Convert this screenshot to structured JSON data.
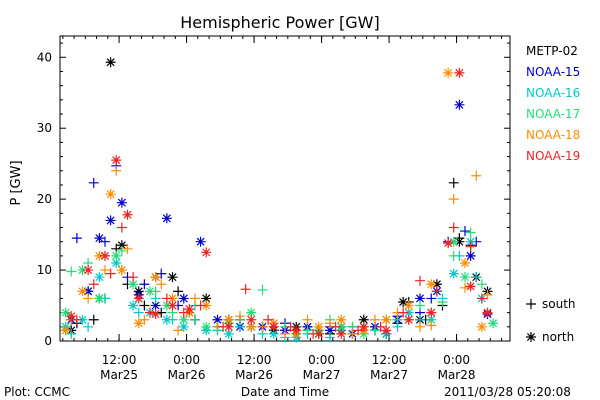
{
  "chart_data": {
    "type": "scatter",
    "title": "Hemispheric Power [GW]",
    "ylabel": "P [GW]",
    "xlabel": "Date and Time",
    "ylim": [
      0,
      43
    ],
    "yticks": [
      0,
      10,
      20,
      30,
      40
    ],
    "xlim_hours": [
      0,
      80
    ],
    "xticks": [
      {
        "t": 10.5,
        "time": "12:00",
        "date": "Mar25"
      },
      {
        "t": 22.5,
        "time": "0:00",
        "date": "Mar26"
      },
      {
        "t": 34.5,
        "time": "12:00",
        "date": "Mar26"
      },
      {
        "t": 46.5,
        "time": "0:00",
        "date": "Mar27"
      },
      {
        "t": 58.5,
        "time": "12:00",
        "date": "Mar27"
      },
      {
        "t": 70.5,
        "time": "0:00",
        "date": "Mar28"
      }
    ],
    "series": [
      {
        "name": "METP-02",
        "color": "#000000",
        "south": [
          [
            3,
            2.5
          ],
          [
            6,
            3
          ],
          [
            8,
            6
          ],
          [
            10,
            13
          ],
          [
            12,
            8
          ],
          [
            15,
            5
          ],
          [
            18,
            4
          ],
          [
            21,
            7
          ],
          [
            24,
            3
          ],
          [
            28,
            2
          ],
          [
            32,
            3
          ],
          [
            36,
            2
          ],
          [
            40,
            1.5
          ],
          [
            44,
            2
          ],
          [
            48,
            1
          ],
          [
            52,
            2
          ],
          [
            56,
            1.5
          ],
          [
            60,
            2.5
          ],
          [
            62,
            5.5
          ],
          [
            65,
            3
          ],
          [
            68,
            5
          ],
          [
            70,
            22.3
          ],
          [
            71,
            14.5
          ],
          [
            73,
            13.5
          ]
        ],
        "north": [
          [
            2,
            1.5
          ],
          [
            5,
            7
          ],
          [
            7,
            6
          ],
          [
            9,
            39.3
          ],
          [
            11,
            13.5
          ],
          [
            14,
            7
          ],
          [
            17,
            9
          ],
          [
            20,
            9
          ],
          [
            23,
            4
          ],
          [
            26,
            6
          ],
          [
            30,
            3
          ],
          [
            34,
            2
          ],
          [
            38,
            1.5
          ],
          [
            42,
            2
          ],
          [
            46,
            1
          ],
          [
            50,
            2
          ],
          [
            54,
            3
          ],
          [
            58,
            1
          ],
          [
            61,
            5.5
          ],
          [
            64,
            3
          ],
          [
            67,
            8
          ],
          [
            71,
            14
          ],
          [
            74,
            9
          ],
          [
            76,
            7
          ]
        ]
      },
      {
        "name": "NOAA-15",
        "color": "#0000cc",
        "south": [
          [
            3,
            14.5
          ],
          [
            6,
            22.3
          ],
          [
            8,
            14
          ],
          [
            10,
            24.7
          ],
          [
            12,
            9
          ],
          [
            15,
            8
          ],
          [
            18,
            9.5
          ],
          [
            21,
            5
          ],
          [
            24,
            3
          ],
          [
            28,
            2
          ],
          [
            32,
            3
          ],
          [
            36,
            2
          ],
          [
            40,
            2.5
          ],
          [
            44,
            1.5
          ],
          [
            48,
            2
          ],
          [
            52,
            1
          ],
          [
            56,
            2
          ],
          [
            60,
            3.5
          ],
          [
            64,
            4
          ],
          [
            66,
            6
          ],
          [
            69,
            14
          ],
          [
            72,
            15.5
          ],
          [
            74,
            14
          ]
        ],
        "north": [
          [
            2,
            3
          ],
          [
            5,
            7
          ],
          [
            7,
            14.5
          ],
          [
            9,
            17
          ],
          [
            11,
            19.5
          ],
          [
            14,
            6.5
          ],
          [
            17,
            5
          ],
          [
            19,
            17.3
          ],
          [
            22,
            6
          ],
          [
            25,
            14
          ],
          [
            28,
            3
          ],
          [
            32,
            2
          ],
          [
            36,
            2
          ],
          [
            40,
            1.5
          ],
          [
            44,
            2
          ],
          [
            48,
            1.5
          ],
          [
            52,
            1
          ],
          [
            56,
            2
          ],
          [
            60,
            3
          ],
          [
            64,
            6
          ],
          [
            67,
            7
          ],
          [
            71,
            33.3
          ],
          [
            73,
            12
          ],
          [
            76,
            3.8
          ]
        ]
      },
      {
        "name": "NOAA-16",
        "color": "#00c8c8",
        "south": [
          [
            2,
            1
          ],
          [
            5,
            2
          ],
          [
            8,
            6
          ],
          [
            11,
            10
          ],
          [
            14,
            4
          ],
          [
            17,
            6
          ],
          [
            20,
            3
          ],
          [
            24,
            5
          ],
          [
            28,
            1.5
          ],
          [
            32,
            2
          ],
          [
            36,
            1
          ],
          [
            40,
            0.5
          ],
          [
            44,
            1
          ],
          [
            48,
            0.5
          ],
          [
            52,
            1
          ],
          [
            56,
            1.5
          ],
          [
            60,
            2
          ],
          [
            64,
            3
          ],
          [
            68,
            6
          ],
          [
            71,
            12
          ],
          [
            74,
            9
          ]
        ],
        "north": [
          [
            1,
            2
          ],
          [
            4,
            3
          ],
          [
            7,
            9
          ],
          [
            10,
            11
          ],
          [
            13,
            5
          ],
          [
            16,
            4
          ],
          [
            19,
            3
          ],
          [
            22,
            2
          ],
          [
            26,
            1.5
          ],
          [
            30,
            1
          ],
          [
            34,
            2
          ],
          [
            38,
            1
          ],
          [
            42,
            0.5
          ],
          [
            46,
            1
          ],
          [
            50,
            1.5
          ],
          [
            54,
            2
          ],
          [
            58,
            1
          ],
          [
            62,
            4
          ],
          [
            66,
            3
          ],
          [
            70,
            9.5
          ],
          [
            73,
            14
          ],
          [
            75,
            6
          ]
        ]
      },
      {
        "name": "NOAA-17",
        "color": "#22dd77",
        "south": [
          [
            2,
            9.8
          ],
          [
            5,
            11
          ],
          [
            8,
            12
          ],
          [
            11,
            12.7
          ],
          [
            14,
            6
          ],
          [
            17,
            7
          ],
          [
            20,
            4
          ],
          [
            24,
            3
          ],
          [
            28,
            2
          ],
          [
            32,
            3
          ],
          [
            36,
            7.2
          ],
          [
            40,
            2
          ],
          [
            44,
            1.5
          ],
          [
            48,
            3
          ],
          [
            52,
            2
          ],
          [
            56,
            1.5
          ],
          [
            60,
            3
          ],
          [
            64,
            5
          ],
          [
            68,
            5.5
          ],
          [
            70,
            12
          ],
          [
            73,
            15.3
          ],
          [
            75,
            8
          ]
        ],
        "north": [
          [
            1,
            4
          ],
          [
            4,
            10
          ],
          [
            7,
            6
          ],
          [
            10,
            12
          ],
          [
            13,
            8
          ],
          [
            16,
            7
          ],
          [
            19,
            5
          ],
          [
            22,
            3
          ],
          [
            26,
            2
          ],
          [
            30,
            2.5
          ],
          [
            34,
            4
          ],
          [
            38,
            2
          ],
          [
            42,
            1
          ],
          [
            46,
            1.5
          ],
          [
            50,
            2
          ],
          [
            54,
            1
          ],
          [
            58,
            3
          ],
          [
            62,
            3
          ],
          [
            66,
            4
          ],
          [
            70,
            14
          ],
          [
            72,
            9
          ],
          [
            77,
            2.5
          ]
        ]
      },
      {
        "name": "NOAA-18",
        "color": "#ff8c00",
        "south": [
          [
            2,
            3
          ],
          [
            5,
            6
          ],
          [
            8,
            10
          ],
          [
            10,
            24
          ],
          [
            12,
            13
          ],
          [
            15,
            3
          ],
          [
            18,
            8
          ],
          [
            21,
            1.5
          ],
          [
            24,
            6
          ],
          [
            28,
            2
          ],
          [
            32,
            3.5
          ],
          [
            36,
            2
          ],
          [
            40,
            1
          ],
          [
            44,
            3
          ],
          [
            48,
            2.5
          ],
          [
            52,
            1
          ],
          [
            56,
            3
          ],
          [
            60,
            4
          ],
          [
            64,
            2
          ],
          [
            66,
            2.2
          ],
          [
            70,
            20
          ],
          [
            72,
            7.5
          ],
          [
            74,
            23.3
          ],
          [
            76,
            6.5
          ]
        ],
        "north": [
          [
            1,
            1.5
          ],
          [
            4,
            7
          ],
          [
            7,
            12
          ],
          [
            9,
            20.7
          ],
          [
            11,
            10
          ],
          [
            14,
            2.5
          ],
          [
            17,
            9
          ],
          [
            20,
            6
          ],
          [
            23,
            4
          ],
          [
            26,
            5
          ],
          [
            30,
            3
          ],
          [
            34,
            2
          ],
          [
            38,
            2.5
          ],
          [
            42,
            1
          ],
          [
            46,
            2
          ],
          [
            50,
            3
          ],
          [
            54,
            1.5
          ],
          [
            58,
            3
          ],
          [
            62,
            5
          ],
          [
            66,
            8
          ],
          [
            69,
            37.8
          ],
          [
            72,
            11
          ],
          [
            75,
            2
          ]
        ]
      },
      {
        "name": "NOAA-19",
        "color": "#ee2222",
        "south": [
          [
            3,
            3
          ],
          [
            6,
            8
          ],
          [
            9,
            9.5
          ],
          [
            11,
            16
          ],
          [
            13,
            9
          ],
          [
            16,
            4
          ],
          [
            19,
            6
          ],
          [
            22,
            4
          ],
          [
            25,
            5
          ],
          [
            29,
            2
          ],
          [
            33,
            7.3
          ],
          [
            37,
            3
          ],
          [
            41,
            2
          ],
          [
            45,
            1
          ],
          [
            49,
            2
          ],
          [
            53,
            1.5
          ],
          [
            57,
            2
          ],
          [
            61,
            4
          ],
          [
            64,
            8.5
          ],
          [
            67,
            7
          ],
          [
            70,
            16
          ],
          [
            73,
            13.3
          ],
          [
            75,
            6
          ]
        ],
        "north": [
          [
            2,
            3.5
          ],
          [
            5,
            10
          ],
          [
            8,
            12
          ],
          [
            10,
            25.5
          ],
          [
            12,
            17.8
          ],
          [
            14,
            6
          ],
          [
            17,
            3.8
          ],
          [
            20,
            5
          ],
          [
            23,
            4.5
          ],
          [
            26,
            12.5
          ],
          [
            30,
            2
          ],
          [
            34,
            3
          ],
          [
            38,
            2
          ],
          [
            42,
            1.5
          ],
          [
            46,
            1
          ],
          [
            50,
            1
          ],
          [
            54,
            2
          ],
          [
            58,
            1.5
          ],
          [
            62,
            3
          ],
          [
            66,
            4
          ],
          [
            69,
            13.8
          ],
          [
            71,
            37.8
          ],
          [
            73,
            7.7
          ],
          [
            76,
            4
          ]
        ]
      }
    ],
    "marker_legend": [
      {
        "symbol": "+",
        "label": "south"
      },
      {
        "symbol": "*",
        "label": "north"
      }
    ]
  },
  "footer": {
    "left": "Plot: CCMC",
    "right": "2011/03/28 05:20:08"
  }
}
